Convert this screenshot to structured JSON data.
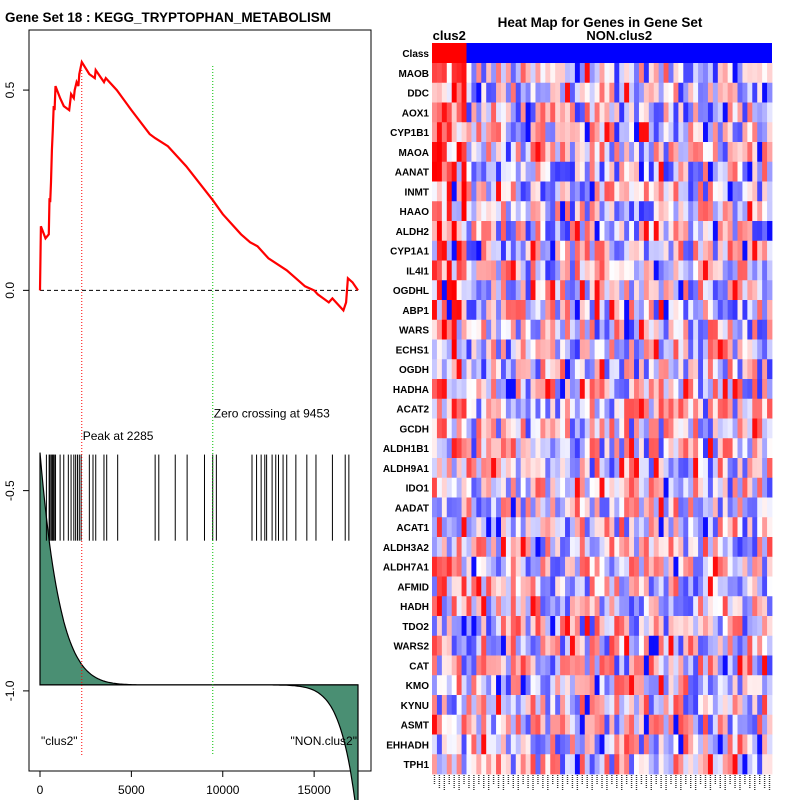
{
  "left_title": "Gene Set  18 : KEGG_TRYPTOPHAN_METABOLISM",
  "right_title": "Heat Map for Genes in Gene Set",
  "chart_data": [
    {
      "type": "line",
      "name": "enrichment-score",
      "xlim": [
        0,
        17400
      ],
      "ylim": [
        -1.2,
        0.65
      ],
      "x_ticks": [
        0,
        5000,
        10000,
        15000
      ],
      "x_tick_labels": [
        "0",
        "5000",
        "10000",
        "15000"
      ],
      "y_ticks": [
        0.5,
        0.0,
        -0.5,
        -1.0
      ],
      "y_tick_labels": [
        "0.5",
        "0.0",
        "-0.5",
        "-1.0"
      ],
      "points": [
        [
          0,
          0.0
        ],
        [
          50,
          0.16
        ],
        [
          300,
          0.13
        ],
        [
          480,
          0.14
        ],
        [
          520,
          0.23
        ],
        [
          560,
          0.22
        ],
        [
          600,
          0.27
        ],
        [
          650,
          0.35
        ],
        [
          700,
          0.4
        ],
        [
          750,
          0.46
        ],
        [
          800,
          0.45
        ],
        [
          850,
          0.51
        ],
        [
          1100,
          0.48
        ],
        [
          1300,
          0.46
        ],
        [
          1600,
          0.45
        ],
        [
          1700,
          0.49
        ],
        [
          1850,
          0.48
        ],
        [
          1900,
          0.5
        ],
        [
          2000,
          0.52
        ],
        [
          2100,
          0.51
        ],
        [
          2150,
          0.54
        ],
        [
          2285,
          0.57
        ],
        [
          2700,
          0.54
        ],
        [
          3000,
          0.53
        ],
        [
          3050,
          0.55
        ],
        [
          3500,
          0.52
        ],
        [
          3600,
          0.53
        ],
        [
          4200,
          0.5
        ],
        [
          5000,
          0.45
        ],
        [
          6000,
          0.39
        ],
        [
          6300,
          0.38
        ],
        [
          7000,
          0.36
        ],
        [
          8000,
          0.31
        ],
        [
          9453,
          0.225
        ],
        [
          10000,
          0.19
        ],
        [
          11000,
          0.14
        ],
        [
          11500,
          0.12
        ],
        [
          11900,
          0.11
        ],
        [
          12500,
          0.08
        ],
        [
          13500,
          0.05
        ],
        [
          14000,
          0.03
        ],
        [
          14500,
          0.01
        ],
        [
          15000,
          0.0
        ],
        [
          15200,
          -0.01
        ],
        [
          15500,
          -0.02
        ],
        [
          15800,
          -0.03
        ],
        [
          16000,
          -0.02
        ],
        [
          16400,
          -0.04
        ],
        [
          16600,
          -0.05
        ],
        [
          16750,
          -0.03
        ],
        [
          16850,
          0.03
        ],
        [
          17100,
          0.02
        ],
        [
          17400,
          0.0
        ]
      ],
      "baseline_y": 0.0,
      "peak": {
        "x": 2285,
        "label": "Peak at 2285"
      },
      "zero_crossing": {
        "x": 9453,
        "label": "Zero crossing at 9453"
      },
      "hit_positions": [
        350,
        500,
        550,
        620,
        680,
        730,
        780,
        850,
        1100,
        1300,
        1550,
        1700,
        1850,
        1950,
        2050,
        2150,
        2250,
        2700,
        2900,
        3050,
        3500,
        3650,
        4250,
        6300,
        6500,
        7400,
        8050,
        9000,
        9450,
        9650,
        11600,
        11850,
        12100,
        12300,
        12400,
        12700,
        12900,
        13050,
        13300,
        13500,
        14000,
        14600,
        15100,
        16000,
        16700,
        16900
      ],
      "ranked_metric": {
        "start": 0.58,
        "mid": 0.0,
        "end": -0.35,
        "baseline_y": -0.985
      },
      "left_class_label": "\"clus2\"",
      "right_class_label": "\"NON.clus2\""
    },
    {
      "type": "heatmap",
      "name": "gene-heatmap",
      "class_label": "Class",
      "class_groups": [
        {
          "name": "clus2",
          "columns": 7,
          "color": "#ff0000"
        },
        {
          "name": "NON.clus2",
          "columns": 62,
          "color": "#0000ff"
        }
      ],
      "genes": [
        "MAOB",
        "DDC",
        "AOX1",
        "CYP1B1",
        "MAOA",
        "AANAT",
        "INMT",
        "HAAO",
        "ALDH2",
        "CYP1A1",
        "IL4I1",
        "OGDHL",
        "ABP1",
        "WARS",
        "ECHS1",
        "OGDH",
        "HADHA",
        "ACAT2",
        "GCDH",
        "ALDH1B1",
        "ALDH9A1",
        "IDO1",
        "AADAT",
        "ACAT1",
        "ALDH3A2",
        "ALDH7A1",
        "AFMID",
        "HADH",
        "TDO2",
        "WARS2",
        "CAT",
        "KMO",
        "KYNU",
        "ASMT",
        "EHHADH",
        "TPH1"
      ],
      "color_scale": {
        "low": "#0000ff",
        "mid": "#ffffff",
        "high": "#ff0000"
      }
    }
  ]
}
